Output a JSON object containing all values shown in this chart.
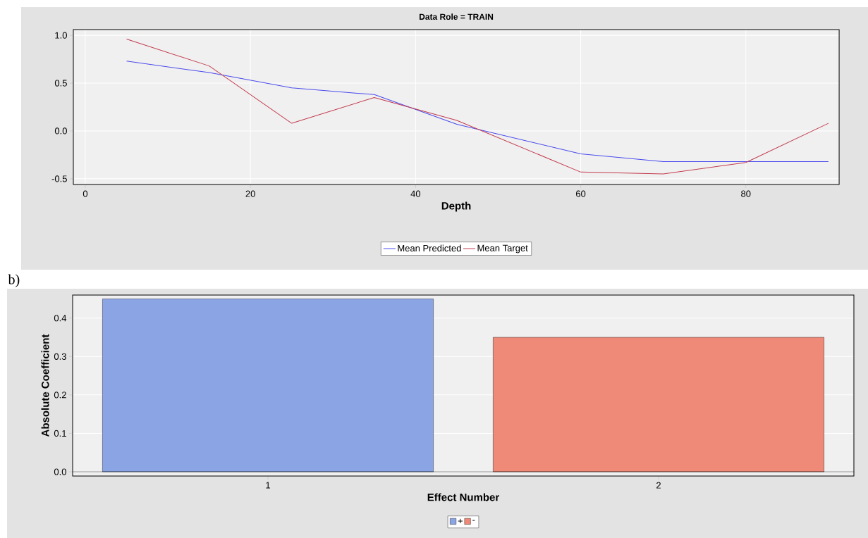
{
  "chart_data": [
    {
      "type": "line",
      "title": "Data Role = TRAIN",
      "xlabel": "Depth",
      "x": [
        5,
        15,
        25,
        35,
        45,
        60,
        70,
        80,
        90
      ],
      "series": [
        {
          "name": "Mean Predicted",
          "color": "#4a4aee",
          "values": [
            0.73,
            0.61,
            0.45,
            0.38,
            0.07,
            -0.24,
            -0.32,
            -0.32,
            -0.32
          ]
        },
        {
          "name": "Mean Target",
          "color": "#c23b4e",
          "values": [
            0.96,
            0.68,
            0.08,
            0.35,
            0.11,
            -0.43,
            -0.45,
            -0.33,
            0.08
          ]
        }
      ],
      "xlim": [
        -1.45,
        91.3
      ],
      "ylim": [
        -0.56,
        1.06
      ],
      "xticks": [
        0,
        20,
        40,
        60,
        80
      ],
      "yticks": [
        {
          "value": -0.5,
          "label": "-0.5"
        },
        {
          "value": 0,
          "label": "0.0"
        },
        {
          "value": 0.5,
          "label": "0.5"
        },
        {
          "value": 1,
          "label": "1.0"
        }
      ],
      "grid": true,
      "legend": "bottom"
    },
    {
      "type": "bar",
      "xlabel": "Effect Number",
      "ylabel": "Absolute Coefficient",
      "annotations": [
        "b)"
      ],
      "categories": [
        "1",
        "2"
      ],
      "series": [
        {
          "name": "+",
          "color": "#8aa4e4",
          "values": [
            0.45,
            null
          ]
        },
        {
          "name": "-",
          "color": "#f08a78",
          "values": [
            null,
            0.35
          ]
        }
      ],
      "ylim": [
        -0.011,
        0.46
      ],
      "yticks": [
        {
          "value": 0,
          "label": "0.0"
        },
        {
          "value": 0.1,
          "label": "0.1"
        },
        {
          "value": 0.2,
          "label": "0.2"
        },
        {
          "value": 0.3,
          "label": "0.3"
        },
        {
          "value": 0.4,
          "label": "0.4"
        }
      ],
      "grid": "y",
      "legend": "bottom"
    }
  ]
}
